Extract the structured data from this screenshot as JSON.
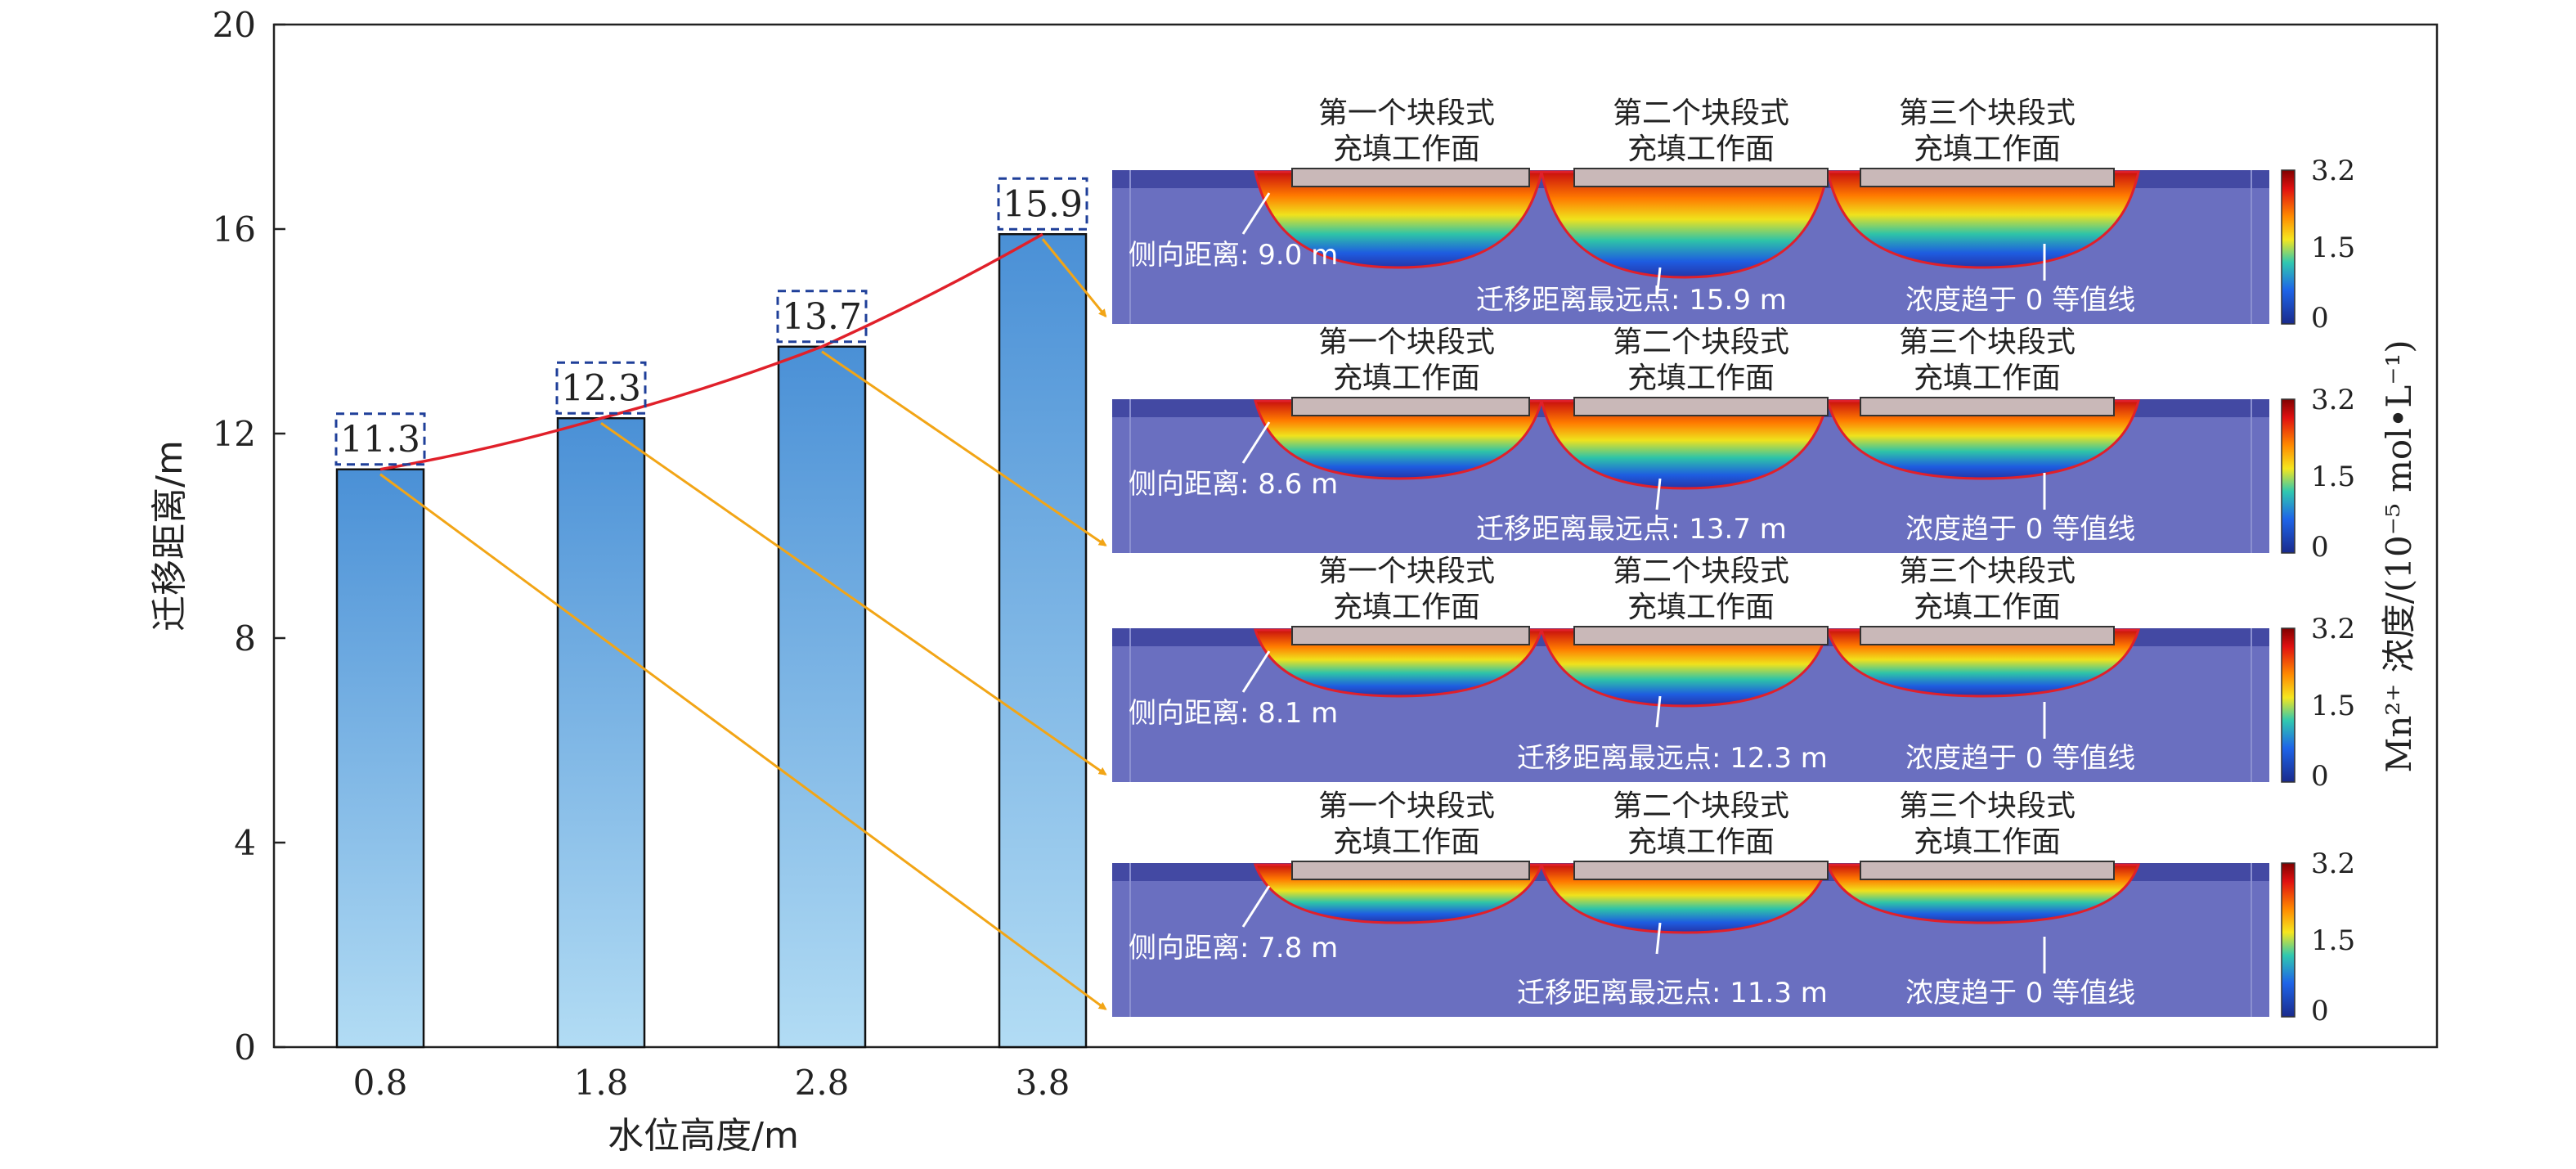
{
  "chart_data": {
    "type": "bar",
    "categories": [
      "0.8",
      "1.8",
      "2.8",
      "3.8"
    ],
    "values": [
      11.3,
      12.3,
      13.7,
      15.9
    ],
    "data_labels": [
      "11.3",
      "12.3",
      "13.7",
      "15.9"
    ],
    "xlabel": "水位高度/m",
    "ylabel": "迁移距离/m",
    "ylim": [
      0,
      20
    ],
    "yticks": [
      "0",
      "4",
      "8",
      "12",
      "16",
      "20"
    ],
    "grid": false,
    "trend_line": true,
    "colors": {
      "bar_top": "#4a90d6",
      "bar_bottom": "#b2dcf4",
      "trend": "#e0202a",
      "arrow": "#f2a516",
      "label_box": "#1f3f99"
    },
    "panels": [
      {
        "lateral": "侧向距离: 7.8 m",
        "farthest": "迁移距离最远点: 11.3 m"
      },
      {
        "lateral": "侧向距离: 8.1 m",
        "farthest": "迁移距离最远点: 12.3 m"
      },
      {
        "lateral": "侧向距离: 8.6 m",
        "farthest": "迁移距离最远点: 13.7 m"
      },
      {
        "lateral": "侧向距离: 9.0 m",
        "farthest": "迁移距离最远点: 15.9 m"
      }
    ],
    "panel_common": {
      "face_line1": [
        "第一个块段式",
        "第二个块段式",
        "第三个块段式"
      ],
      "face_line2": "充填工作面",
      "isoline": "浓度趋于 0 等值线",
      "colorbar_ticks": [
        "3.2",
        "1.5",
        "0"
      ]
    },
    "colorbar_title": "Mn²⁺ 浓度/(10⁻⁵ mol•L⁻¹)"
  }
}
